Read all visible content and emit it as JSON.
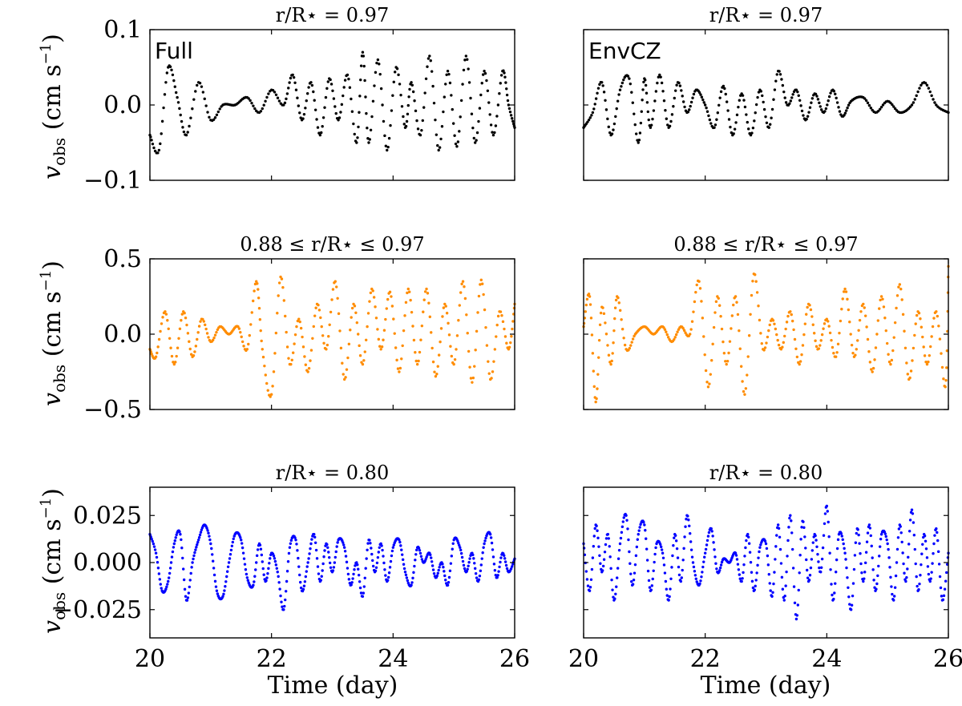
{
  "figure": {
    "xlabel": "Time (day)",
    "ylabel_main": "v",
    "ylabel_sub": "obs",
    "ylabel_unit": " (cm s",
    "ylabel_exp": "−1",
    "ylabel_close": ")"
  },
  "chart_data": [
    {
      "type": "scatter",
      "row": 0,
      "col": 0,
      "title": "r/R⋆ = 0.97",
      "label": "Full",
      "xlim": [
        20,
        26
      ],
      "ylim": [
        -0.1,
        0.1
      ],
      "xticks": [
        "20",
        "22",
        "24",
        "26"
      ],
      "yticks": [
        "−0.1",
        "0.0",
        "0.1"
      ],
      "ytick_values": [
        -0.1,
        0.0,
        0.1
      ],
      "show_xticklabels": false,
      "show_yticklabels": true,
      "color": "#000000",
      "series": [
        {
          "x": [
            20.0,
            20.15,
            20.3,
            20.45,
            20.6,
            20.8,
            21.0,
            21.2,
            21.4,
            21.6,
            21.8,
            22.0,
            22.2,
            22.35,
            22.5,
            22.65,
            22.8,
            22.95,
            23.1,
            23.25,
            23.4,
            23.5,
            23.6,
            23.75,
            23.9,
            24.05,
            24.2,
            24.3,
            24.45,
            24.6,
            24.75,
            24.9,
            25.05,
            25.2,
            25.35,
            25.5,
            25.65,
            25.8,
            25.9,
            26.0
          ],
          "y": [
            -0.04,
            -0.06,
            0.05,
            0.01,
            -0.04,
            0.03,
            -0.02,
            0.0,
            0.0,
            0.01,
            -0.01,
            0.02,
            0.0,
            0.04,
            -0.02,
            0.03,
            -0.04,
            0.035,
            -0.02,
            0.04,
            -0.05,
            0.07,
            -0.05,
            0.06,
            -0.06,
            0.05,
            -0.03,
            0.03,
            -0.04,
            0.065,
            -0.06,
            0.045,
            -0.055,
            0.065,
            -0.05,
            0.045,
            -0.04,
            0.045,
            0.0,
            -0.03
          ]
        }
      ]
    },
    {
      "type": "scatter",
      "row": 0,
      "col": 1,
      "title": "r/R⋆ = 0.97",
      "label": "EnvCZ",
      "xlim": [
        20,
        26
      ],
      "ylim": [
        -0.1,
        0.1
      ],
      "xticks": [
        "20",
        "22",
        "24",
        "26"
      ],
      "yticks": [
        "−0.1",
        "0.0",
        "0.1"
      ],
      "ytick_values": [
        -0.1,
        0.0,
        0.1
      ],
      "show_xticklabels": false,
      "show_yticklabels": false,
      "color": "#000000",
      "series": [
        {
          "x": [
            20.0,
            20.15,
            20.3,
            20.45,
            20.6,
            20.75,
            20.9,
            21.0,
            21.1,
            21.25,
            21.4,
            21.55,
            21.7,
            21.85,
            22.0,
            22.15,
            22.3,
            22.45,
            22.6,
            22.75,
            22.9,
            23.05,
            23.2,
            23.35,
            23.5,
            23.65,
            23.8,
            23.95,
            24.1,
            24.25,
            24.4,
            24.6,
            24.8,
            25.0,
            25.2,
            25.4,
            25.6,
            25.8,
            26.0
          ],
          "y": [
            -0.03,
            -0.01,
            0.03,
            -0.04,
            0.02,
            0.035,
            -0.05,
            0.035,
            -0.03,
            0.04,
            -0.03,
            0.03,
            -0.01,
            0.02,
            0.0,
            -0.03,
            0.025,
            -0.04,
            0.015,
            -0.04,
            0.02,
            -0.03,
            0.045,
            0.0,
            0.02,
            -0.02,
            0.015,
            -0.01,
            0.02,
            -0.015,
            0.005,
            0.01,
            -0.01,
            0.005,
            -0.01,
            0.0,
            0.03,
            0.0,
            -0.01
          ]
        }
      ]
    },
    {
      "type": "scatter",
      "row": 1,
      "col": 0,
      "title": "0.88 ≤ r/R⋆ ≤ 0.97",
      "label": "",
      "xlim": [
        20,
        26
      ],
      "ylim": [
        -0.5,
        0.5
      ],
      "xticks": [
        "20",
        "22",
        "24",
        "26"
      ],
      "yticks": [
        "−0.5",
        "0.0",
        "0.5"
      ],
      "ytick_values": [
        -0.5,
        0.0,
        0.5
      ],
      "show_xticklabels": false,
      "show_yticklabels": true,
      "color": "#ff8c00",
      "series": [
        {
          "x": [
            20.0,
            20.1,
            20.25,
            20.4,
            20.55,
            20.7,
            20.85,
            21.0,
            21.15,
            21.3,
            21.45,
            21.6,
            21.75,
            21.85,
            22.0,
            22.15,
            22.3,
            22.45,
            22.6,
            22.75,
            22.9,
            23.05,
            23.2,
            23.35,
            23.5,
            23.65,
            23.8,
            23.95,
            24.1,
            24.25,
            24.4,
            24.55,
            24.7,
            24.85,
            25.0,
            25.15,
            25.3,
            25.45,
            25.6,
            25.75,
            25.9,
            26.0
          ],
          "y": [
            -0.1,
            -0.15,
            0.15,
            -0.2,
            0.15,
            -0.15,
            0.1,
            -0.05,
            0.05,
            0.0,
            0.05,
            -0.1,
            0.35,
            -0.1,
            -0.4,
            0.38,
            -0.2,
            0.1,
            -0.25,
            0.2,
            -0.1,
            0.35,
            -0.3,
            0.2,
            -0.2,
            0.3,
            -0.1,
            0.28,
            -0.25,
            0.3,
            -0.2,
            0.3,
            -0.28,
            0.2,
            -0.2,
            0.35,
            -0.32,
            0.36,
            -0.3,
            0.15,
            -0.1,
            0.2
          ]
        }
      ]
    },
    {
      "type": "scatter",
      "row": 1,
      "col": 1,
      "title": "0.88 ≤ r/R⋆ ≤ 0.97",
      "label": "",
      "xlim": [
        20,
        26
      ],
      "ylim": [
        -0.5,
        0.5
      ],
      "xticks": [
        "20",
        "22",
        "24",
        "26"
      ],
      "yticks": [
        "−0.5",
        "0.0",
        "0.5"
      ],
      "ytick_values": [
        -0.5,
        0.0,
        0.5
      ],
      "show_xticklabels": false,
      "show_yticklabels": false,
      "color": "#ff8c00",
      "series": [
        {
          "x": [
            20.0,
            20.1,
            20.2,
            20.3,
            20.45,
            20.55,
            20.7,
            20.85,
            21.0,
            21.15,
            21.3,
            21.45,
            21.6,
            21.75,
            21.9,
            22.05,
            22.2,
            22.35,
            22.5,
            22.65,
            22.8,
            22.95,
            23.1,
            23.25,
            23.4,
            23.55,
            23.7,
            23.85,
            24.0,
            24.15,
            24.3,
            24.45,
            24.6,
            24.75,
            24.9,
            25.05,
            25.2,
            25.35,
            25.5,
            25.65,
            25.8,
            25.95,
            26.0
          ],
          "y": [
            0.05,
            0.25,
            -0.45,
            0.18,
            -0.2,
            0.25,
            -0.1,
            0.0,
            0.05,
            0.0,
            0.05,
            -0.05,
            0.05,
            0.0,
            0.35,
            -0.35,
            0.25,
            -0.2,
            0.25,
            -0.4,
            0.4,
            -0.1,
            0.1,
            -0.1,
            0.15,
            -0.2,
            0.2,
            -0.1,
            0.1,
            -0.15,
            0.3,
            -0.15,
            0.2,
            -0.25,
            0.25,
            -0.2,
            0.33,
            -0.3,
            0.15,
            -0.2,
            0.15,
            -0.35,
            0.45
          ]
        }
      ]
    },
    {
      "type": "scatter",
      "row": 2,
      "col": 0,
      "title": "r/R⋆ = 0.80",
      "label": "",
      "xlim": [
        20,
        26
      ],
      "ylim": [
        -0.04,
        0.04
      ],
      "xticks": [
        "20",
        "22",
        "24",
        "26"
      ],
      "yticks": [
        "−0.025",
        "0.000",
        "0.025"
      ],
      "ytick_values": [
        -0.025,
        0.0,
        0.025
      ],
      "show_xticklabels": true,
      "show_yticklabels": true,
      "color": "#0000ff",
      "series": [
        {
          "x": [
            20.0,
            20.1,
            20.2,
            20.3,
            20.4,
            20.5,
            20.6,
            20.7,
            20.8,
            20.9,
            21.0,
            21.1,
            21.2,
            21.3,
            21.4,
            21.5,
            21.6,
            21.7,
            21.8,
            21.9,
            22.0,
            22.1,
            22.2,
            22.3,
            22.4,
            22.5,
            22.6,
            22.7,
            22.8,
            22.9,
            23.0,
            23.1,
            23.2,
            23.3,
            23.4,
            23.5,
            23.6,
            23.7,
            23.8,
            23.9,
            24.0,
            24.1,
            24.2,
            24.3,
            24.4,
            24.5,
            24.6,
            24.7,
            24.8,
            24.9,
            25.0,
            25.1,
            25.2,
            25.3,
            25.4,
            25.5,
            25.6,
            25.7,
            25.8,
            25.9,
            26.0
          ],
          "y": [
            0.015,
            0.005,
            -0.015,
            -0.01,
            0.01,
            0.015,
            -0.02,
            0.0,
            0.012,
            0.02,
            0.01,
            -0.015,
            -0.018,
            0.0,
            0.015,
            0.012,
            -0.008,
            -0.012,
            0.01,
            -0.01,
            0.005,
            -0.005,
            -0.025,
            0.008,
            0.012,
            -0.015,
            0.0,
            0.015,
            -0.01,
            0.01,
            -0.005,
            0.012,
            0.008,
            -0.012,
            0.0,
            -0.018,
            0.012,
            -0.005,
            0.01,
            -0.01,
            0.008,
            0.012,
            -0.005,
            -0.012,
            0.008,
            0.0,
            0.005,
            -0.008,
            0.0,
            -0.012,
            0.012,
            0.008,
            -0.005,
            0.005,
            -0.01,
            0.01,
            0.015,
            -0.008,
            0.005,
            -0.005,
            0.002
          ]
        }
      ]
    },
    {
      "type": "scatter",
      "row": 2,
      "col": 1,
      "title": "r/R⋆ = 0.80",
      "label": "",
      "xlim": [
        20,
        26
      ],
      "ylim": [
        -0.04,
        0.04
      ],
      "xticks": [
        "20",
        "22",
        "24",
        "26"
      ],
      "yticks": [
        "−0.025",
        "0.000",
        "0.025"
      ],
      "ytick_values": [
        -0.025,
        0.0,
        0.025
      ],
      "show_xticklabels": true,
      "show_yticklabels": false,
      "color": "#0000ff",
      "series": [
        {
          "x": [
            20.0,
            20.1,
            20.2,
            20.3,
            20.4,
            20.5,
            20.6,
            20.7,
            20.8,
            20.9,
            21.0,
            21.1,
            21.2,
            21.3,
            21.4,
            21.5,
            21.6,
            21.7,
            21.8,
            21.9,
            22.0,
            22.1,
            22.2,
            22.3,
            22.4,
            22.5,
            22.6,
            22.7,
            22.8,
            22.9,
            23.0,
            23.1,
            23.2,
            23.3,
            23.4,
            23.5,
            23.6,
            23.7,
            23.8,
            23.9,
            24.0,
            24.1,
            24.2,
            24.3,
            24.4,
            24.5,
            24.6,
            24.7,
            24.8,
            24.9,
            25.0,
            25.1,
            25.2,
            25.3,
            25.4,
            25.5,
            25.6,
            25.7,
            25.8,
            25.9,
            26.0
          ],
          "y": [
            0.01,
            -0.015,
            0.02,
            -0.005,
            0.015,
            -0.02,
            0.01,
            0.025,
            -0.012,
            0.015,
            0.02,
            -0.015,
            0.01,
            0.005,
            -0.02,
            0.015,
            -0.01,
            0.025,
            0.0,
            -0.012,
            0.005,
            0.018,
            -0.005,
            0.002,
            0.0,
            0.005,
            -0.01,
            0.015,
            -0.015,
            0.008,
            0.01,
            -0.018,
            0.02,
            -0.02,
            0.025,
            -0.03,
            0.022,
            -0.01,
            0.015,
            -0.005,
            0.03,
            -0.02,
            0.015,
            0.005,
            -0.025,
            0.018,
            -0.01,
            0.02,
            -0.015,
            0.015,
            0.01,
            -0.02,
            0.02,
            -0.01,
            0.028,
            -0.015,
            0.015,
            -0.01,
            0.018,
            -0.02,
            0.005
          ]
        }
      ]
    }
  ]
}
